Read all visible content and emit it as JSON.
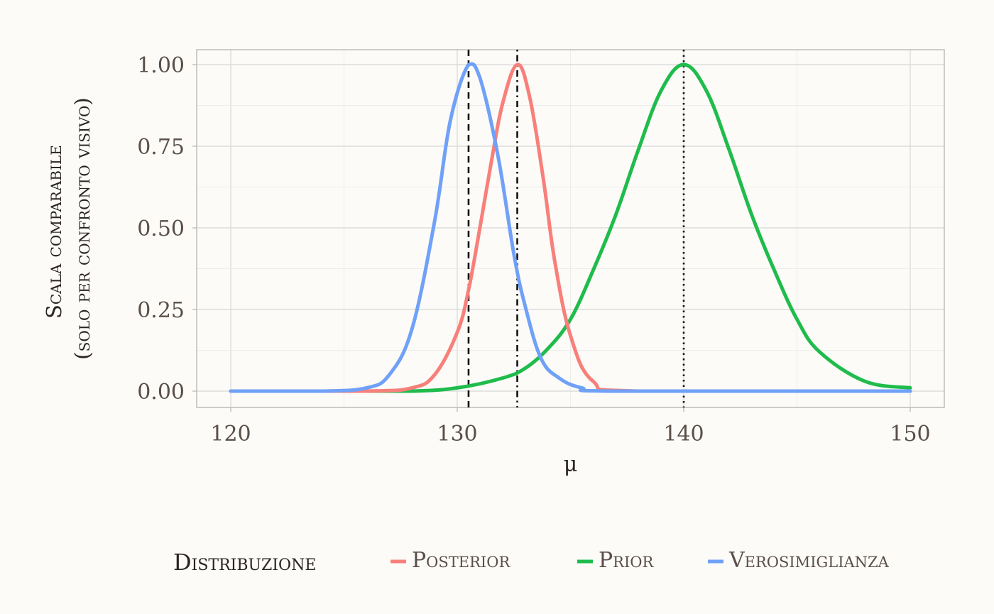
{
  "chart_data": {
    "type": "line",
    "xlabel": "μ",
    "ylabel_lines": [
      "Scala comparabile",
      "(solo per confronto visivo)"
    ],
    "xlim": [
      120,
      150
    ],
    "ylim": [
      0,
      1
    ],
    "x_ticks": [
      "120",
      "130",
      "140",
      "150"
    ],
    "y_ticks": [
      "0.00",
      "0.25",
      "0.50",
      "0.75",
      "1.00"
    ],
    "grid": true,
    "legend": {
      "title": "Distribuzione",
      "position": "bottom"
    },
    "series": [
      {
        "name": "Posterior",
        "color": "#f8807a",
        "x": [
          120,
          126,
          128,
          129,
          130,
          130.5,
          131,
          131.5,
          132,
          132.65,
          133.2,
          133.8,
          134.3,
          135,
          136,
          138,
          150
        ],
        "y": [
          0,
          0.0,
          0.01,
          0.05,
          0.18,
          0.31,
          0.5,
          0.7,
          0.88,
          1.0,
          0.9,
          0.65,
          0.4,
          0.17,
          0.03,
          0.0,
          0
        ]
      },
      {
        "name": "Prior",
        "color": "#1fbc4c",
        "x": [
          120,
          125,
          128,
          130,
          132,
          133,
          134,
          135,
          136,
          137,
          138,
          139,
          140,
          141,
          142,
          143,
          144,
          145,
          146,
          148,
          150
        ],
        "y": [
          0,
          0.0,
          0.0,
          0.01,
          0.04,
          0.07,
          0.13,
          0.22,
          0.37,
          0.54,
          0.74,
          0.92,
          1.0,
          0.92,
          0.74,
          0.54,
          0.37,
          0.22,
          0.12,
          0.03,
          0.01
        ]
      },
      {
        "name": "Verosimiglianza",
        "color": "#70a1f8",
        "x": [
          120,
          124,
          126,
          127,
          128,
          129,
          129.7,
          130.5,
          131,
          131.8,
          132.5,
          133,
          133.7,
          134.5,
          135.5,
          137,
          150
        ],
        "y": [
          0,
          0.0,
          0.01,
          0.05,
          0.19,
          0.52,
          0.83,
          1.0,
          0.96,
          0.72,
          0.42,
          0.26,
          0.1,
          0.04,
          0.01,
          0.0,
          0
        ]
      }
    ],
    "vlines": [
      {
        "x": 130.5,
        "style": "dashed"
      },
      {
        "x": 132.65,
        "style": "dashdot"
      },
      {
        "x": 140,
        "style": "dotted"
      }
    ]
  }
}
